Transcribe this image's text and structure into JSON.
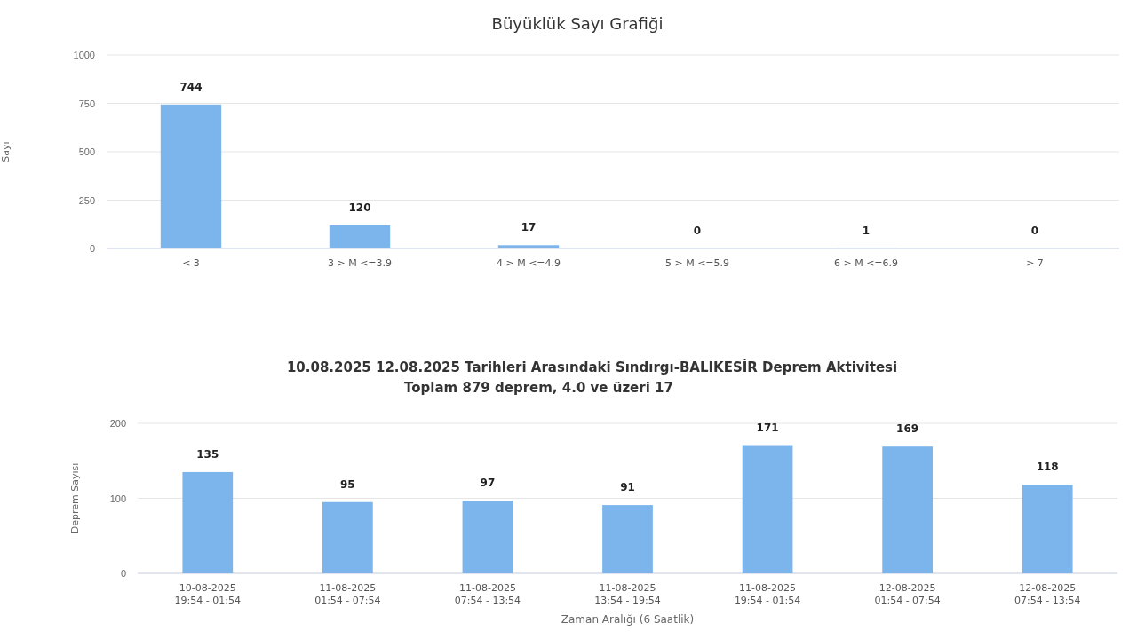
{
  "chart_data": [
    {
      "type": "bar",
      "title": "Büyüklük Sayı Grafiği",
      "ylabel": "Sayı",
      "categories": [
        "< 3",
        "3 > M <=3.9",
        "4 > M <=4.9",
        "5 > M <=5.9",
        "6 > M <=6.9",
        "> 7"
      ],
      "values": [
        744,
        120,
        17,
        0,
        1,
        0
      ],
      "color": "#7cb5ec",
      "ylim": [
        0,
        1000
      ],
      "yticks": [
        0,
        250,
        500,
        750,
        1000
      ],
      "grid": "y",
      "data_labels": true
    },
    {
      "type": "bar",
      "title": "10.08.2025 12.08.2025 Tarihleri Arasındaki Sındırgı-BALIKESİR Deprem Aktivitesi",
      "subtitle": "Toplam  879  deprem, 4.0 ve üzeri 17",
      "ylabel": "Deprem Sayısı",
      "xlabel": "Zaman Aralığı (6 Saatlik)",
      "categories": [
        "10-08-2025\n19:54 - 01:54",
        "11-08-2025\n01:54 - 07:54",
        "11-08-2025\n07:54 - 13:54",
        "11-08-2025\n13:54 - 19:54",
        "11-08-2025\n19:54 - 01:54",
        "12-08-2025\n01:54 - 07:54",
        "12-08-2025\n07:54 - 13:54"
      ],
      "values": [
        135,
        95,
        97,
        91,
        171,
        169,
        118
      ],
      "color": "#7cb5ec",
      "ylim": [
        0,
        200
      ],
      "yticks": [
        0,
        100,
        200
      ],
      "grid": "y",
      "data_labels": true
    }
  ]
}
